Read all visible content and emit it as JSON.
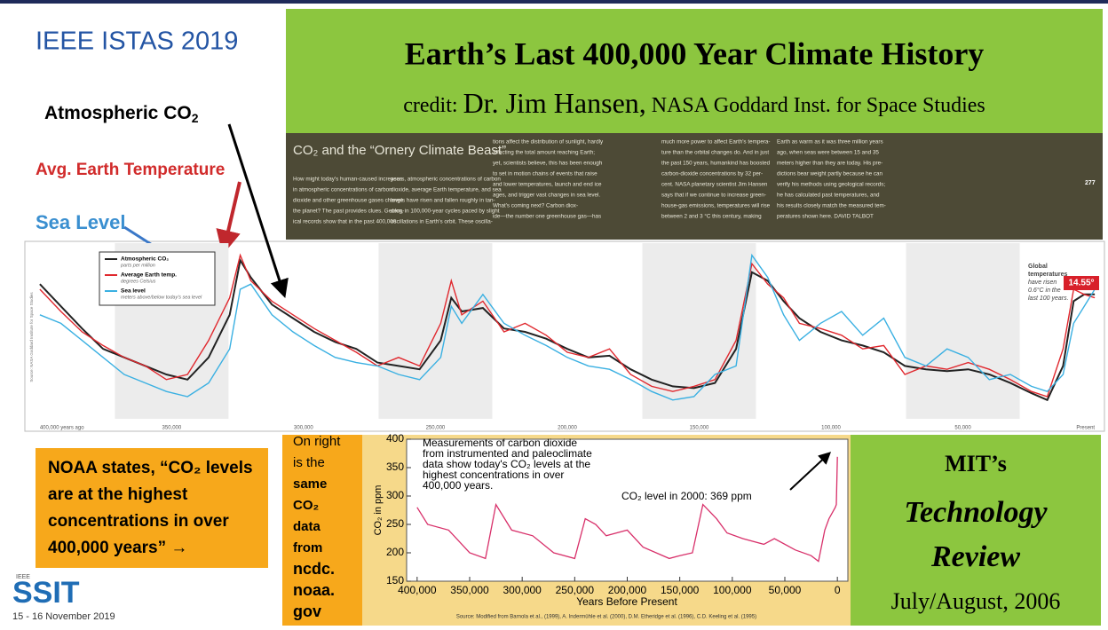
{
  "header": {
    "event": "IEEE ISTAS 2019",
    "title": "Earth’s Last 400,000 Year Climate History",
    "credit_prefix": "credit:",
    "credit_name": "Dr. Jim Hansen,",
    "credit_org": "NASA Goddard Inst. for Space Studies"
  },
  "annotations": {
    "co2": "Atmospheric CO",
    "co2_sub": "2",
    "temperature": "Avg. Earth Temperature",
    "sea_level": "Sea Level"
  },
  "magazine": {
    "heading": "CO₂ and the “Ornery Climate Beast”",
    "page_number": "277",
    "columns": [
      [
        "How might today's human-caused increases",
        "in atmospheric concentrations of carbon",
        "dioxide and other greenhouse gases change",
        "the planet? The past provides clues. Geolog-",
        "ical records show that in the past 400,000"
      ],
      [
        "years, atmospheric concentrations of carbon",
        "dioxide, average Earth temperature, and sea",
        "levels have risen and fallen roughly in tan-",
        "dem, in 100,000-year cycles paced by slight",
        "oscillations in Earth's orbit. These oscilla-"
      ],
      [
        "tions affect the distribution of sunlight, hardly",
        "affecting the total amount reaching Earth;",
        "yet, scientists believe, this has been enough",
        "to set in motion chains of events that raise",
        "and lower temperatures, launch and end ice",
        "ages, and trigger vast changes in sea level.",
        "What's coming next? Carbon diox-",
        "ide—the number one greenhouse gas—has"
      ],
      [
        "much more power to affect Earth's tempera-",
        "ture than the orbital changes do. And in just",
        "the past 150 years, humankind has boosted",
        "carbon-dioxide concentrations by 32 per-",
        "cent. NASA planetary scientist Jim Hansen",
        "says that if we continue to increase green-",
        "house-gas emissions, temperatures will rise",
        "between 2 and 3 °C this century, making"
      ],
      [
        "Earth as warm as it was three million years",
        "ago, when seas were between 15 and 35",
        "meters higher than they are today. His pre-",
        "dictions bear weight partly because he can",
        "verify his methods using geological records;",
        "he has calculated past temperatures, and",
        "his results closely match the measured tem-",
        "peratures shown here.   DAVID TALBOT"
      ]
    ]
  },
  "climate_chart": {
    "type": "line",
    "source": "Source: NASA Goddard Institute for Space Studies",
    "legend": [
      {
        "name": "Atmospheric CO₂",
        "unit": "parts per million"
      },
      {
        "name": "Average Earth temp.",
        "unit": "degrees Celsius"
      },
      {
        "name": "Sea level",
        "unit": "meters above/below today's sea level"
      }
    ],
    "note": [
      "Global",
      "temperatures",
      "have risen",
      "0.6°C in the",
      "last 100 years."
    ],
    "badge": "14.55°",
    "xlim": [
      405,
      -3
    ],
    "ylim": [
      0,
      100
    ],
    "xticks": [
      {
        "value": 400,
        "label": "400,000 years ago"
      },
      {
        "value": 350,
        "label": "350,000"
      },
      {
        "value": 300,
        "label": "300,000"
      },
      {
        "value": 250,
        "label": "250,000"
      },
      {
        "value": 200,
        "label": "200,000"
      },
      {
        "value": 150,
        "label": "150,000"
      },
      {
        "value": 100,
        "label": "100,000"
      },
      {
        "value": 50,
        "label": "50,000"
      },
      {
        "value": 0,
        "label": "Present"
      }
    ],
    "x": [
      400,
      392,
      384,
      376,
      368,
      360,
      352,
      344,
      336,
      328,
      324,
      320,
      312,
      304,
      296,
      288,
      280,
      272,
      264,
      256,
      248,
      244,
      240,
      232,
      224,
      216,
      208,
      200,
      192,
      184,
      176,
      168,
      160,
      152,
      144,
      136,
      130,
      124,
      118,
      112,
      104,
      96,
      88,
      80,
      72,
      64,
      56,
      48,
      40,
      32,
      24,
      18,
      12,
      8,
      4,
      0
    ],
    "series": [
      {
        "color": "#222222",
        "values": [
          78,
          65,
          52,
          40,
          35,
          30,
          25,
          22,
          35,
          60,
          92,
          82,
          66,
          58,
          50,
          44,
          40,
          32,
          30,
          28,
          45,
          70,
          62,
          64,
          52,
          50,
          46,
          40,
          35,
          36,
          28,
          22,
          18,
          17,
          20,
          40,
          85,
          80,
          68,
          58,
          50,
          45,
          42,
          38,
          30,
          28,
          27,
          28,
          25,
          20,
          14,
          10,
          30,
          68,
          72,
          72
        ]
      },
      {
        "color": "#e0282e",
        "values": [
          75,
          62,
          50,
          42,
          35,
          30,
          22,
          25,
          45,
          70,
          95,
          80,
          68,
          60,
          52,
          45,
          38,
          30,
          35,
          30,
          55,
          80,
          60,
          68,
          50,
          55,
          48,
          38,
          35,
          40,
          25,
          18,
          15,
          18,
          22,
          45,
          90,
          78,
          70,
          55,
          52,
          48,
          40,
          42,
          25,
          30,
          28,
          32,
          28,
          22,
          15,
          12,
          40,
          75,
          72,
          70
        ]
      },
      {
        "color": "#3ab0e2",
        "values": [
          60,
          55,
          45,
          35,
          25,
          20,
          15,
          12,
          20,
          40,
          75,
          78,
          60,
          50,
          42,
          35,
          32,
          30,
          25,
          22,
          35,
          65,
          55,
          72,
          55,
          48,
          42,
          35,
          30,
          28,
          22,
          15,
          10,
          12,
          25,
          30,
          95,
          82,
          60,
          45,
          55,
          62,
          48,
          58,
          35,
          30,
          40,
          35,
          22,
          25,
          18,
          15,
          25,
          55,
          65,
          75
        ]
      }
    ]
  },
  "noaa": [
    "NOAA states, “CO₂ levels",
    "are at the highest",
    "concentrations in over",
    "400,000 years” →"
  ],
  "side_note": [
    "On right",
    "is the",
    "same",
    "CO₂",
    "data",
    "from",
    "ncdc.",
    "noaa.",
    "gov"
  ],
  "co2_chart": {
    "type": "line",
    "title": [
      "Measurements of carbon dioxide",
      "from instrumented and paleoclimate",
      "data show today's CO₂ levels at the",
      "highest concentrations in over",
      "400,000 years."
    ],
    "annotation": "CO₂ level in 2000: 369 ppm",
    "y_label": "CO₂ in ppm",
    "x_label": "Years Before Present",
    "source": "Source: Modified from Barnola et al., (1999), A. Indermühle et al. (2000), D.M. Etheridge et al. (1996), C.D. Keeling et al. (1995)",
    "xlim": [
      410000,
      -10000
    ],
    "ylim": [
      150,
      400
    ],
    "xticks": [
      {
        "value": 400000,
        "label": "400,000"
      },
      {
        "value": 350000,
        "label": "350,000"
      },
      {
        "value": 300000,
        "label": "300,000"
      },
      {
        "value": 250000,
        "label": "250,000"
      },
      {
        "value": 200000,
        "label": "200,000"
      },
      {
        "value": 150000,
        "label": "150,000"
      },
      {
        "value": 100000,
        "label": "100,000"
      },
      {
        "value": 50000,
        "label": "50,000"
      },
      0
    ],
    "yticks": [
      150,
      200,
      250,
      300,
      350,
      400
    ],
    "series": [
      {
        "color": "#d8306a",
        "x": [
          400000,
          390000,
          370000,
          350000,
          335000,
          325000,
          310000,
          290000,
          270000,
          250000,
          240000,
          230000,
          220000,
          200000,
          185000,
          160000,
          150000,
          138000,
          128000,
          115000,
          105000,
          90000,
          70000,
          60000,
          40000,
          25000,
          18000,
          12000,
          8000,
          2000,
          1000,
          0
        ],
        "values": [
          280,
          250,
          240,
          200,
          190,
          285,
          240,
          230,
          200,
          190,
          260,
          250,
          230,
          240,
          210,
          190,
          195,
          200,
          285,
          260,
          235,
          225,
          215,
          225,
          205,
          195,
          185,
          240,
          260,
          280,
          285,
          369
        ]
      }
    ]
  },
  "mit": [
    "MIT’s",
    "Technology",
    "Review",
    "July/August, 2006"
  ],
  "footer": {
    "org_small": "IEEE",
    "org": "SSIT",
    "date": "15 - 16 November 2019"
  }
}
